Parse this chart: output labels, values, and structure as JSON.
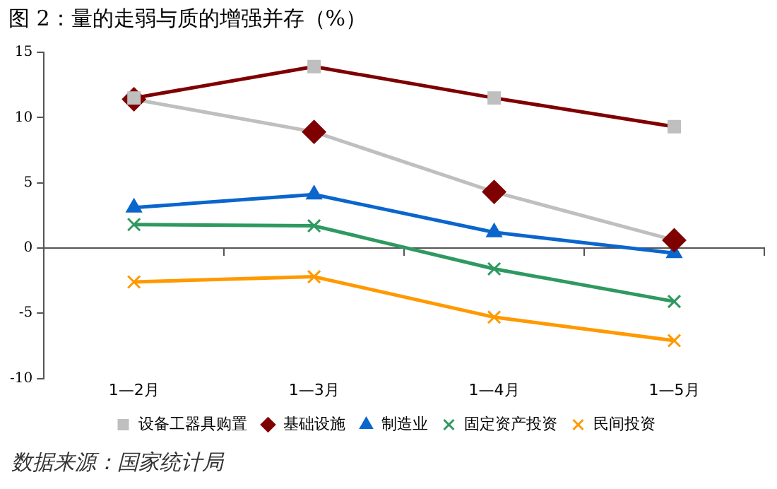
{
  "chart_data": {
    "type": "line",
    "title": "图 2：量的走弱与质的增强并存（%）",
    "categories": [
      "1—2月",
      "1—3月",
      "1—4月",
      "1—5月"
    ],
    "series": [
      {
        "name": "设备工器具购置",
        "color": "#7f0000",
        "colors": [
          "#bfbfbf",
          "#bfbfbf",
          "#bfbfbf",
          "#bfbfbf"
        ],
        "marker": "square",
        "values": [
          11.5,
          13.9,
          11.5,
          9.3
        ]
      },
      {
        "name": "基础设施",
        "color": "#bfbfbf",
        "colors": [
          "#7f0000",
          "#7f0000",
          "#7f0000",
          "#7f0000"
        ],
        "marker": "diamond",
        "values": [
          11.4,
          8.9,
          4.3,
          0.6
        ]
      },
      {
        "name": "制造业",
        "color": "#0a66cc",
        "marker": "triangle",
        "values": [
          3.1,
          4.1,
          1.2,
          -0.4
        ]
      },
      {
        "name": "固定资产投资",
        "color": "#2e9960",
        "marker": "cross",
        "values": [
          1.8,
          1.7,
          -1.6,
          -4.1
        ]
      },
      {
        "name": "民间投资",
        "color": "#ff9900",
        "marker": "cross",
        "values": [
          -2.6,
          -2.2,
          -5.3,
          -7.1
        ]
      }
    ],
    "ylim": [
      -10,
      15
    ],
    "yticks": [
      -10,
      -5,
      0,
      5,
      10,
      15
    ],
    "legend": "bottom",
    "annotations": [
      "数据来源：国家统计局"
    ]
  }
}
